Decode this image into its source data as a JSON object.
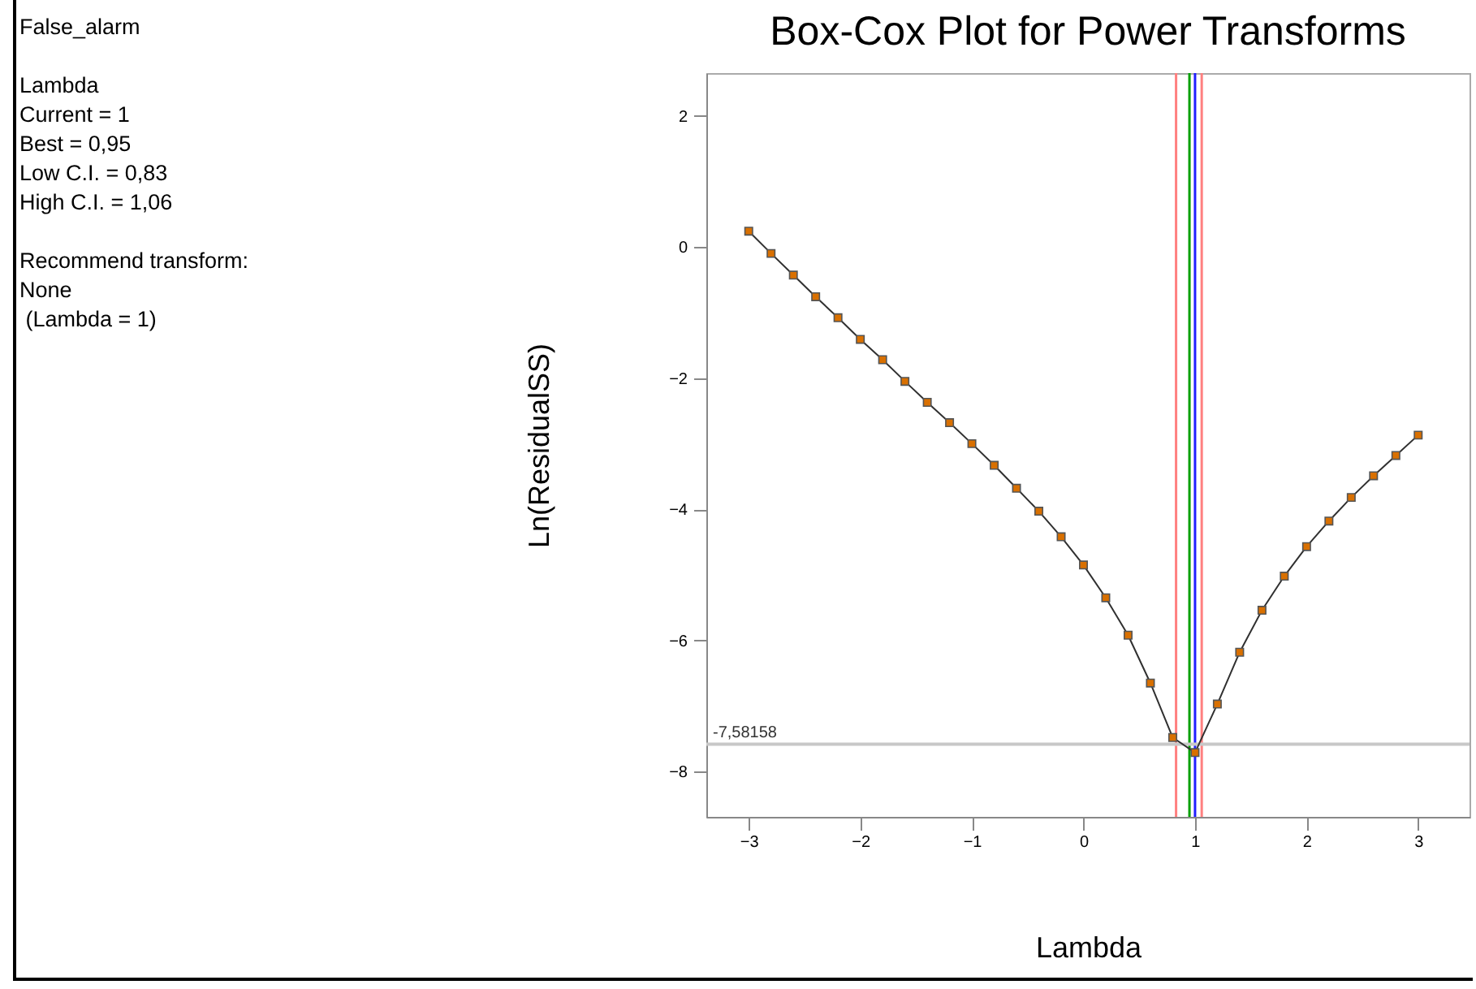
{
  "chart_data": {
    "type": "line",
    "title": "Box-Cox Plot for Power Transforms",
    "xlabel": "Lambda",
    "ylabel": "Ln(ResidualSS)",
    "annotations": [
      "False_alarm",
      "Lambda",
      "Current = 1",
      "Best = 0,95",
      "Low C.I. = 0,83",
      "High C.I. = 1,06",
      "Recommend transform:",
      "None",
      " (Lambda = 1)"
    ],
    "x": [
      -3,
      -2.8,
      -2.6,
      -2.4,
      -2.2,
      -2,
      -1.8,
      -1.6,
      -1.4,
      -1.2,
      -1,
      -0.8,
      -0.6,
      -0.4,
      -0.2,
      0,
      0.2,
      0.4,
      0.6,
      0.8,
      1,
      1.2,
      1.4,
      1.6,
      1.8,
      2,
      2.2,
      2.4,
      2.6,
      2.8,
      3
    ],
    "series": [
      {
        "color": "#d97000",
        "values": [
          0.24,
          -0.1,
          -0.43,
          -0.76,
          -1.08,
          -1.41,
          -1.72,
          -2.05,
          -2.37,
          -2.68,
          -3.0,
          -3.33,
          -3.68,
          -4.03,
          -4.42,
          -4.85,
          -5.35,
          -5.92,
          -6.65,
          -7.48,
          -7.71,
          -6.97,
          -6.18,
          -5.54,
          -5.02,
          -4.57,
          -4.18,
          -3.82,
          -3.49,
          -3.18,
          -2.87
        ]
      }
    ],
    "marker": "square",
    "ref_lines": [
      {
        "axis": "y",
        "value": -7.58158,
        "label": "-7,58158",
        "color": "#c8c8c8"
      },
      {
        "axis": "x",
        "value": 0.95,
        "color": "#00a000"
      },
      {
        "axis": "x",
        "value": 1,
        "color": "#2020ff"
      },
      {
        "axis": "x",
        "value": 0.83,
        "color": "#ff8080"
      },
      {
        "axis": "x",
        "value": 1.06,
        "color": "#ff8080"
      }
    ],
    "xlim": [
      -3.38,
      3.46
    ],
    "ylim": [
      -8.69,
      2.65
    ],
    "xticks": [
      -3,
      -2,
      -1,
      0,
      1,
      2,
      3
    ],
    "yticks": [
      -8,
      -6,
      -4,
      -2,
      0,
      2
    ],
    "grid": false
  }
}
